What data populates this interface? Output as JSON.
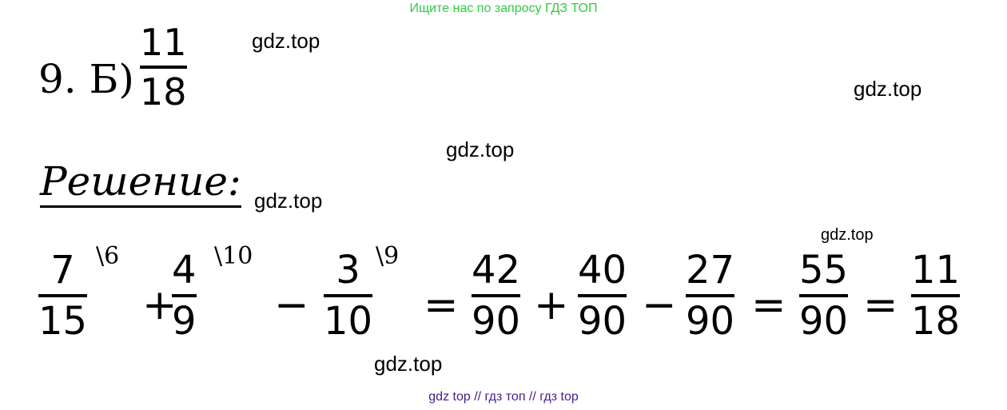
{
  "banner": "Ищите нас по запросу ГДЗ ТОП",
  "problem": {
    "label": "9. Б)",
    "answer": {
      "num": "11",
      "den": "18"
    }
  },
  "solution_heading": "Решение:",
  "equation": {
    "items": [
      {
        "type": "frac",
        "num": "7",
        "den": "15",
        "sup": "\\6"
      },
      {
        "type": "op",
        "text": "+"
      },
      {
        "type": "frac",
        "num": "4",
        "den": "9",
        "sup": "\\10"
      },
      {
        "type": "op",
        "text": "−"
      },
      {
        "type": "frac",
        "num": "3",
        "den": "10",
        "sup": "\\9"
      },
      {
        "type": "op",
        "text": "="
      },
      {
        "type": "frac",
        "num": "42",
        "den": "90"
      },
      {
        "type": "op",
        "text": "+"
      },
      {
        "type": "frac",
        "num": "40",
        "den": "90"
      },
      {
        "type": "op",
        "text": "−"
      },
      {
        "type": "frac",
        "num": "27",
        "den": "90"
      },
      {
        "type": "op",
        "text": "="
      },
      {
        "type": "frac",
        "num": "55",
        "den": "90"
      },
      {
        "type": "op",
        "text": "="
      },
      {
        "type": "frac",
        "num": "11",
        "den": "18"
      }
    ]
  },
  "watermarks": [
    "gdz.top",
    "gdz.top",
    "gdz.top",
    "gdz.top",
    "gdz.top",
    "gdz.top"
  ],
  "footer": "gdz top  //  гдз топ  //  гдз top",
  "colors": {
    "banner": "#2ecc40",
    "footer": "#4b1a8c"
  }
}
